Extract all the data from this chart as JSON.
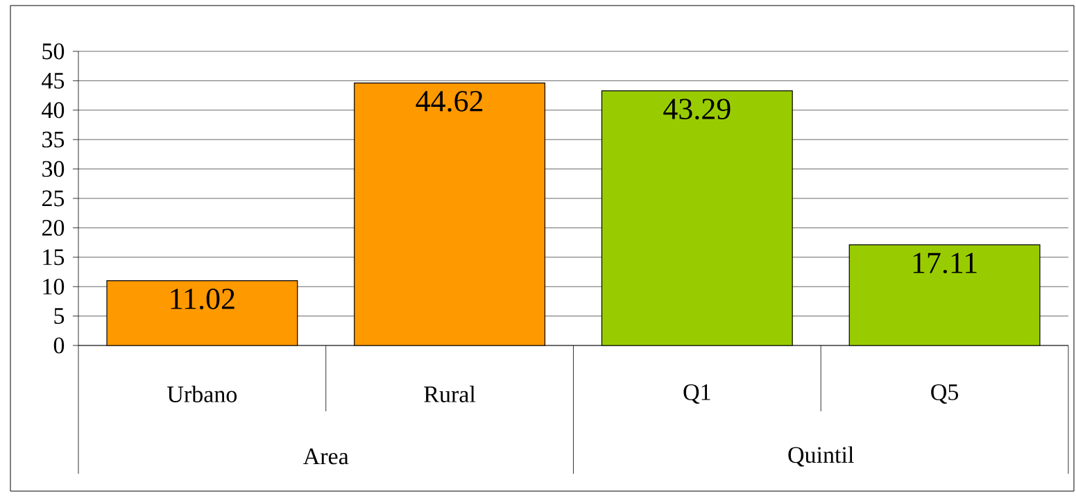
{
  "chart_data": {
    "type": "bar",
    "categories": [
      "Urbano",
      "Rural",
      "Q1",
      "Q5"
    ],
    "values": [
      11.02,
      44.62,
      43.29,
      17.11
    ],
    "colors": [
      "#ff9900",
      "#ff9900",
      "#99cc00",
      "#99cc00"
    ],
    "ylim": [
      0,
      50
    ],
    "yticks": [
      0,
      5,
      10,
      15,
      20,
      25,
      30,
      35,
      40,
      45,
      50
    ],
    "grid": "y",
    "data_labels": true,
    "annotations": [
      "Area",
      "Quintil"
    ]
  }
}
